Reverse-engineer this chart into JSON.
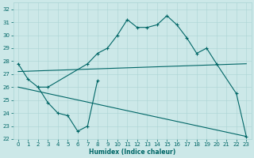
{
  "bg_color": "#cce8e8",
  "grid_color": "#aad4d4",
  "line_color": "#006666",
  "xlabel": "Humidex (Indice chaleur)",
  "ylim": [
    22,
    32.5
  ],
  "xlim": [
    -0.5,
    23.5
  ],
  "yticks": [
    22,
    23,
    24,
    25,
    26,
    27,
    28,
    29,
    30,
    31,
    32
  ],
  "xticks": [
    0,
    1,
    2,
    3,
    4,
    5,
    6,
    7,
    8,
    9,
    10,
    11,
    12,
    13,
    14,
    15,
    16,
    17,
    18,
    19,
    20,
    21,
    22,
    23
  ],
  "line1_x": [
    0,
    1,
    2,
    3,
    7,
    8,
    9,
    10,
    11,
    12,
    13,
    14,
    15,
    16,
    17,
    18,
    19,
    20,
    22,
    23
  ],
  "line1_y": [
    27.8,
    26.6,
    26.0,
    26.0,
    27.8,
    28.6,
    29.0,
    30.0,
    31.2,
    30.6,
    30.6,
    30.8,
    31.5,
    30.8,
    29.8,
    28.6,
    29.0,
    27.8,
    25.5,
    22.2
  ],
  "line2_x": [
    2,
    3,
    4,
    5,
    6,
    7,
    8
  ],
  "line2_y": [
    26.0,
    24.8,
    24.0,
    23.8,
    22.6,
    23.0,
    26.5
  ],
  "line3_x": [
    0,
    23
  ],
  "line3_y": [
    26.0,
    22.2
  ],
  "line4_x": [
    0,
    23
  ],
  "line4_y": [
    27.2,
    27.8
  ]
}
